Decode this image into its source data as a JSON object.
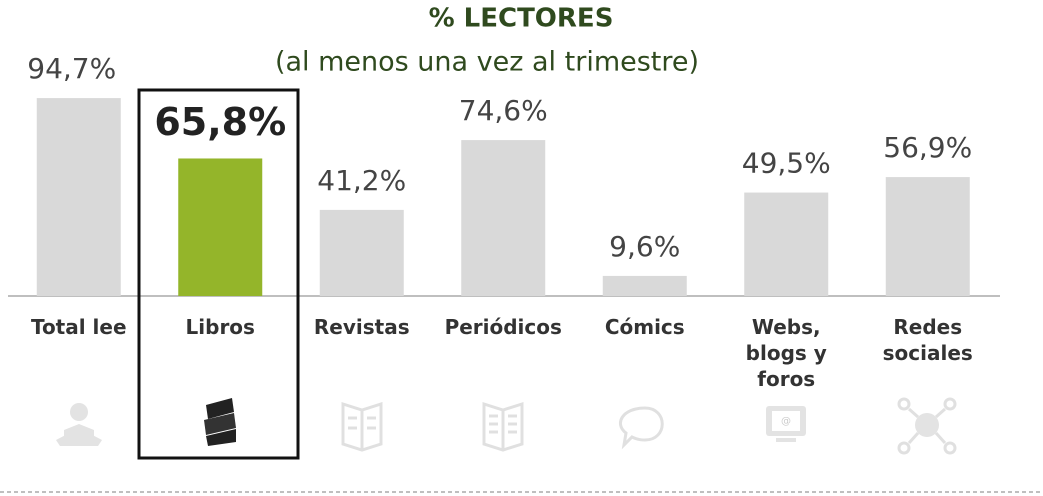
{
  "chart_data": {
    "type": "bar",
    "title": "% LECTORES",
    "subtitle": "(al menos una vez al trimestre)",
    "categories": [
      "Total lee",
      "Libros",
      "Revistas",
      "Periódicos",
      "Cómics",
      "Webs,\nblogs y\nforos",
      "Redes\nsociales"
    ],
    "values": [
      94.7,
      65.8,
      41.2,
      74.6,
      9.6,
      49.5,
      56.9
    ],
    "value_labels": [
      "94,7%",
      "65,8%",
      "41,2%",
      "74,6%",
      "9,6%",
      "49,5%",
      "56,9%"
    ],
    "color": "#d9d9d9",
    "highlight": 1,
    "highlight_color": "#94b52a",
    "ylim": [
      0,
      100
    ]
  }
}
